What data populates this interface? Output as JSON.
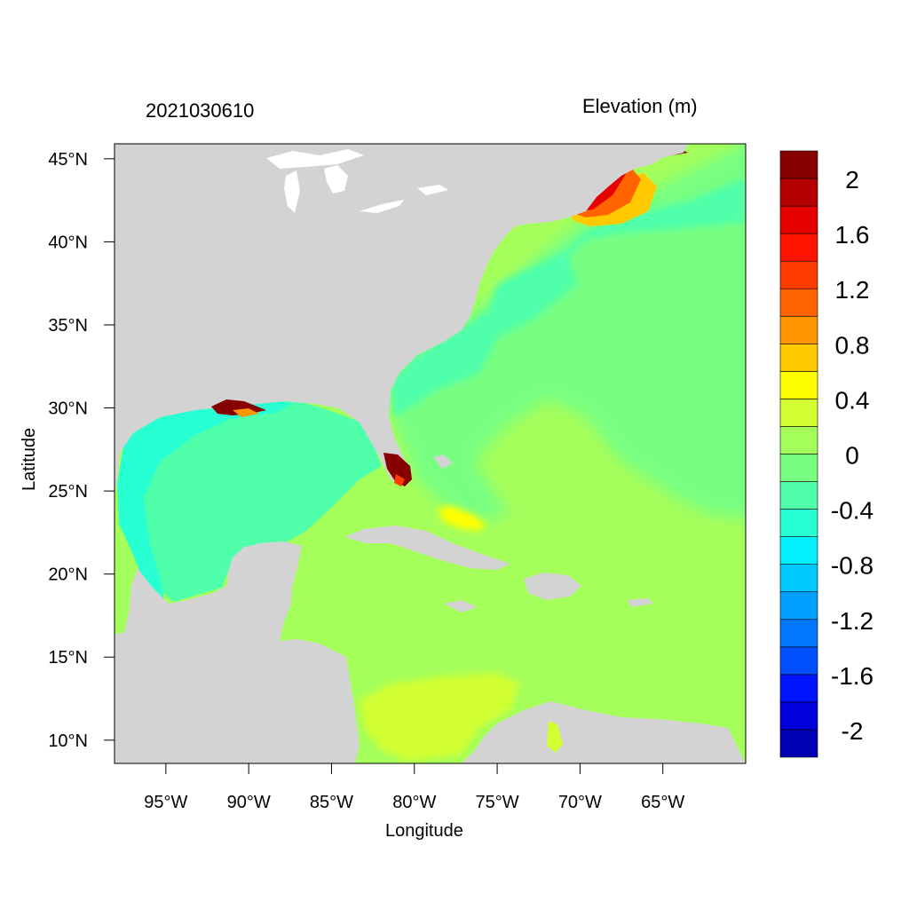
{
  "header": {
    "timestamp": "2021030610",
    "variable_label": "Elevation (m)"
  },
  "axes": {
    "xlabel": "Longitude",
    "ylabel": "Latitude",
    "x_ticks": [
      {
        "value": -95,
        "label": "95°W"
      },
      {
        "value": -90,
        "label": "90°W"
      },
      {
        "value": -85,
        "label": "85°W"
      },
      {
        "value": -80,
        "label": "80°W"
      },
      {
        "value": -75,
        "label": "75°W"
      },
      {
        "value": -70,
        "label": "70°W"
      },
      {
        "value": -65,
        "label": "65°W"
      }
    ],
    "y_ticks": [
      {
        "value": 45,
        "label": "45°N"
      },
      {
        "value": 40,
        "label": "40°N"
      },
      {
        "value": 35,
        "label": "35°N"
      },
      {
        "value": 30,
        "label": "30°N"
      },
      {
        "value": 25,
        "label": "25°N"
      },
      {
        "value": 20,
        "label": "20°N"
      },
      {
        "value": 15,
        "label": "15°N"
      },
      {
        "value": 10,
        "label": "10°N"
      }
    ],
    "lon_range": [
      -98.1,
      -60.0
    ],
    "lat_range": [
      8.6,
      45.9
    ]
  },
  "colorbar": {
    "levels": [
      {
        "color": "#0000b4"
      },
      {
        "color": "#0000dc"
      },
      {
        "color": "#0014ff"
      },
      {
        "color": "#0050ff"
      },
      {
        "color": "#0078ff"
      },
      {
        "color": "#00a0ff"
      },
      {
        "color": "#00c8ff"
      },
      {
        "color": "#00f0ff"
      },
      {
        "color": "#28ffd2"
      },
      {
        "color": "#50ffaa"
      },
      {
        "color": "#78ff82"
      },
      {
        "color": "#a5ff5a"
      },
      {
        "color": "#d2ff32"
      },
      {
        "color": "#ffff00"
      },
      {
        "color": "#ffc800"
      },
      {
        "color": "#ff9600"
      },
      {
        "color": "#ff6400"
      },
      {
        "color": "#ff3c00"
      },
      {
        "color": "#ff1400"
      },
      {
        "color": "#e60000"
      },
      {
        "color": "#b40000"
      },
      {
        "color": "#870000"
      }
    ],
    "tick_labels": [
      "-2",
      "-1.6",
      "-1.2",
      "-0.8",
      "-0.4",
      "0",
      "0.4",
      "0.8",
      "1.2",
      "1.6",
      "2"
    ],
    "range": [
      -2.2,
      2.2
    ]
  },
  "colors": {
    "land": "#d3d3d3",
    "lakes": "#ffffff",
    "frame": "#000000"
  }
}
